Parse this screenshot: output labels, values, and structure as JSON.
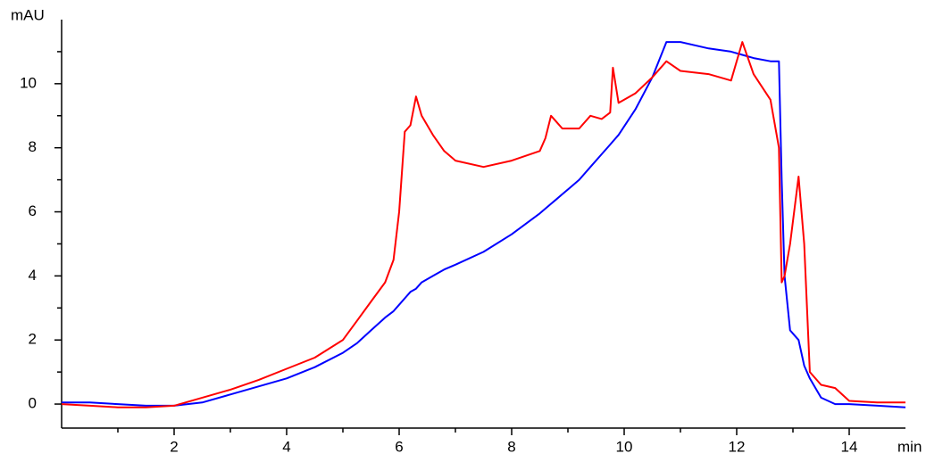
{
  "chart_data": {
    "type": "line",
    "y_label": "mAU",
    "x_label": "min",
    "x": [
      0,
      0.5,
      1,
      1.5,
      2,
      2.5,
      3,
      3.5,
      4,
      4.5,
      5,
      5.25,
      5.5,
      5.75,
      5.9,
      6.0,
      6.1,
      6.2,
      6.3,
      6.4,
      6.6,
      6.8,
      7,
      7.5,
      8,
      8.5,
      8.6,
      8.7,
      8.8,
      8.9,
      9.2,
      9.4,
      9.6,
      9.75,
      9.8,
      9.9,
      10.2,
      10.5,
      10.75,
      11,
      11.5,
      11.9,
      12.1,
      12.3,
      12.6,
      12.75,
      12.8,
      12.85,
      12.95,
      13.1,
      13.2,
      13.3,
      13.5,
      13.75,
      14,
      14.5,
      15
    ],
    "series": [
      {
        "color": "#0000ff",
        "values": [
          0.05,
          0.05,
          0,
          -0.05,
          -0.05,
          0.05,
          0.3,
          0.55,
          0.8,
          1.15,
          1.6,
          1.9,
          2.3,
          2.7,
          2.9,
          3.1,
          3.3,
          3.5,
          3.6,
          3.8,
          4.0,
          4.2,
          4.35,
          4.75,
          5.3,
          5.95,
          6.1,
          6.25,
          6.4,
          6.55,
          7.0,
          7.4,
          7.8,
          8.1,
          8.2,
          8.4,
          9.2,
          10.2,
          11.3,
          11.3,
          11.1,
          11.0,
          10.9,
          10.8,
          10.7,
          10.7,
          7.0,
          4.0,
          2.3,
          2.0,
          1.2,
          0.8,
          0.2,
          0,
          0,
          -0.05,
          -0.1
        ]
      },
      {
        "color": "#ff0000",
        "values": [
          0,
          -0.05,
          -0.1,
          -0.1,
          -0.05,
          0.2,
          0.45,
          0.75,
          1.1,
          1.45,
          2.0,
          2.6,
          3.2,
          3.8,
          4.5,
          6.0,
          8.5,
          8.7,
          9.6,
          9.0,
          8.4,
          7.9,
          7.6,
          7.4,
          7.6,
          7.9,
          8.3,
          9.0,
          8.8,
          8.6,
          8.6,
          9.0,
          8.9,
          9.1,
          10.5,
          9.4,
          9.7,
          10.2,
          10.7,
          10.4,
          10.3,
          10.1,
          11.3,
          10.3,
          9.5,
          8.0,
          3.8,
          4.0,
          5.0,
          7.1,
          5.0,
          1.0,
          0.6,
          0.5,
          0.1,
          0.05,
          0.05
        ]
      }
    ],
    "xlim": [
      0,
      15
    ],
    "ylim": [
      -0.75,
      12
    ],
    "xticks": [
      2,
      4,
      6,
      8,
      10,
      12,
      14
    ],
    "xminorticks": [
      1,
      3,
      5,
      7,
      9,
      11,
      13
    ],
    "yticks": [
      0,
      2,
      4,
      6,
      8,
      10
    ],
    "yminorticks": [
      1,
      3,
      5,
      7,
      9,
      11
    ],
    "grid": false
  }
}
